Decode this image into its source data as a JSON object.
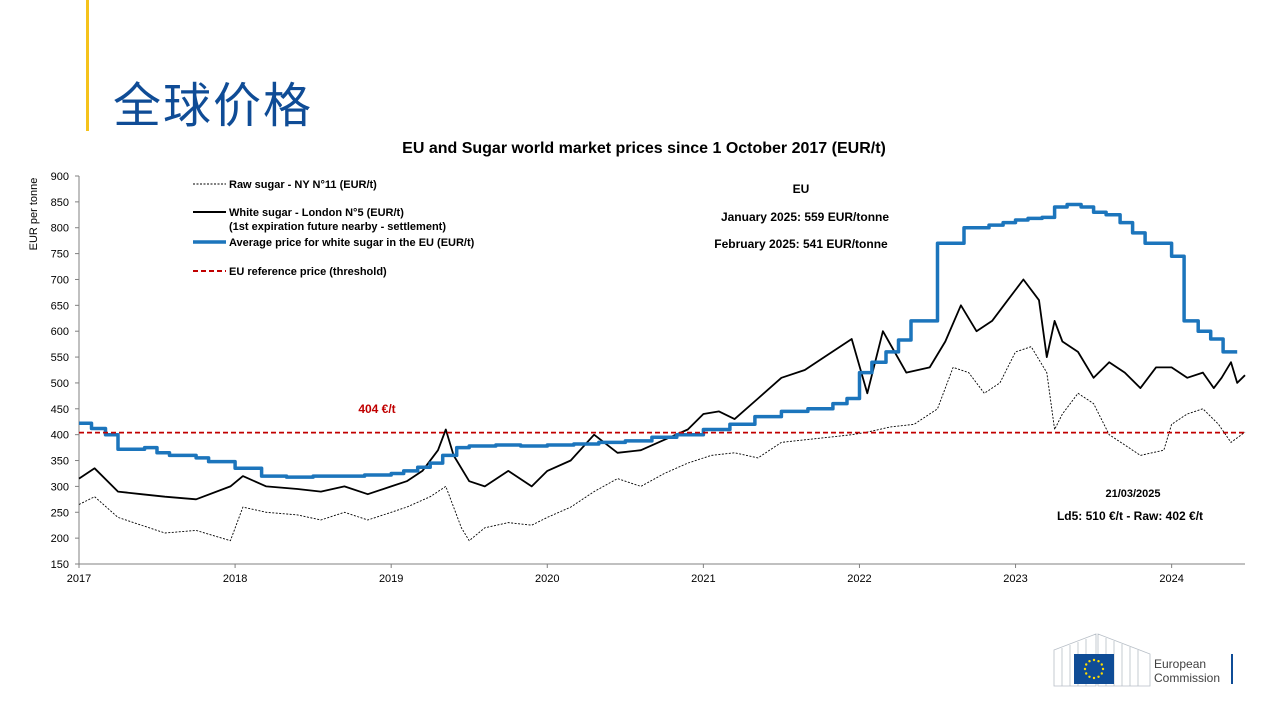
{
  "slide": {
    "title": "全球价格"
  },
  "chart_data": {
    "type": "line",
    "title": "EU and Sugar world market prices since 1 October 2017 (EUR/t)",
    "ylabel": "EUR per tonne",
    "xlabel": "",
    "ylim": [
      150,
      900
    ],
    "xlim": [
      2017.0,
      2024.47
    ],
    "y_ticks": [
      150,
      200,
      250,
      300,
      350,
      400,
      450,
      500,
      550,
      600,
      650,
      700,
      750,
      800,
      850,
      900
    ],
    "x_ticks": [
      "2017",
      "2018",
      "2019",
      "2020",
      "2021",
      "2022",
      "2023",
      "2024"
    ],
    "legend_position": "top-left",
    "series": [
      {
        "name": "Raw sugar - NY N°11 (EUR/t)",
        "style": "dotted",
        "color": "#000000",
        "x": [
          2017.0,
          2017.1,
          2017.25,
          2017.4,
          2017.55,
          2017.75,
          2017.97,
          2018.05,
          2018.2,
          2018.4,
          2018.55,
          2018.7,
          2018.85,
          2019.0,
          2019.1,
          2019.25,
          2019.35,
          2019.45,
          2019.5,
          2019.6,
          2019.75,
          2019.9,
          2020.0,
          2020.15,
          2020.3,
          2020.45,
          2020.6,
          2020.75,
          2020.9,
          2021.05,
          2021.2,
          2021.35,
          2021.5,
          2021.65,
          2021.8,
          2021.95,
          2022.05,
          2022.2,
          2022.35,
          2022.5,
          2022.6,
          2022.7,
          2022.8,
          2022.9,
          2023.0,
          2023.1,
          2023.2,
          2023.25,
          2023.3,
          2023.4,
          2023.5,
          2023.6,
          2023.7,
          2023.8,
          2023.95,
          2024.0,
          2024.1,
          2024.2,
          2024.3,
          2024.38,
          2024.47
        ],
        "y": [
          265,
          280,
          240,
          225,
          210,
          215,
          195,
          260,
          250,
          245,
          235,
          250,
          235,
          250,
          260,
          280,
          300,
          220,
          195,
          220,
          230,
          225,
          240,
          260,
          290,
          315,
          300,
          325,
          345,
          360,
          365,
          355,
          385,
          390,
          395,
          400,
          405,
          415,
          420,
          450,
          530,
          520,
          480,
          500,
          560,
          570,
          520,
          410,
          440,
          480,
          460,
          400,
          380,
          360,
          370,
          420,
          440,
          450,
          420,
          385,
          405
        ]
      },
      {
        "name": "White sugar - London N°5 (EUR/t)",
        "subname": "(1st expiration future nearby - settlement)",
        "style": "solid",
        "color": "#000000",
        "x": [
          2017.0,
          2017.1,
          2017.25,
          2017.4,
          2017.55,
          2017.75,
          2017.97,
          2018.05,
          2018.2,
          2018.4,
          2018.55,
          2018.7,
          2018.85,
          2019.0,
          2019.1,
          2019.2,
          2019.3,
          2019.35,
          2019.4,
          2019.5,
          2019.6,
          2019.75,
          2019.9,
          2020.0,
          2020.15,
          2020.3,
          2020.45,
          2020.6,
          2020.75,
          2020.9,
          2021.0,
          2021.1,
          2021.2,
          2021.35,
          2021.5,
          2021.65,
          2021.8,
          2021.95,
          2022.05,
          2022.15,
          2022.3,
          2022.45,
          2022.55,
          2022.65,
          2022.75,
          2022.85,
          2022.95,
          2023.05,
          2023.15,
          2023.2,
          2023.25,
          2023.3,
          2023.4,
          2023.5,
          2023.6,
          2023.7,
          2023.8,
          2023.9,
          2024.0,
          2024.1,
          2024.2,
          2024.27,
          2024.32,
          2024.38,
          2024.42,
          2024.47
        ],
        "y": [
          315,
          335,
          290,
          285,
          280,
          275,
          300,
          320,
          300,
          295,
          290,
          300,
          285,
          300,
          310,
          330,
          370,
          410,
          360,
          310,
          300,
          330,
          300,
          330,
          350,
          400,
          365,
          370,
          390,
          410,
          440,
          445,
          430,
          470,
          510,
          525,
          555,
          585,
          480,
          600,
          520,
          530,
          580,
          650,
          600,
          620,
          660,
          700,
          660,
          550,
          620,
          580,
          560,
          510,
          540,
          520,
          490,
          530,
          530,
          510,
          520,
          490,
          510,
          540,
          500,
          515
        ]
      },
      {
        "name": "Average price for white sugar in the EU (EUR/t)",
        "style": "solid-thick",
        "color": "#1c75bc",
        "x": [
          2017.0,
          2017.08,
          2017.17,
          2017.25,
          2017.42,
          2017.5,
          2017.58,
          2017.75,
          2017.83,
          2017.92,
          2018.0,
          2018.17,
          2018.33,
          2018.5,
          2018.67,
          2018.83,
          2019.0,
          2019.08,
          2019.17,
          2019.25,
          2019.33,
          2019.42,
          2019.5,
          2019.67,
          2019.83,
          2020.0,
          2020.17,
          2020.33,
          2020.5,
          2020.67,
          2020.83,
          2021.0,
          2021.17,
          2021.33,
          2021.5,
          2021.67,
          2021.83,
          2021.92,
          2022.0,
          2022.08,
          2022.17,
          2022.25,
          2022.33,
          2022.5,
          2022.67,
          2022.83,
          2022.92,
          2023.0,
          2023.08,
          2023.17,
          2023.25,
          2023.33,
          2023.42,
          2023.5,
          2023.58,
          2023.67,
          2023.75,
          2023.83,
          2024.0,
          2024.08,
          2024.17,
          2024.25,
          2024.33
        ],
        "y": [
          422,
          412,
          400,
          372,
          375,
          365,
          360,
          355,
          348,
          348,
          335,
          320,
          318,
          320,
          320,
          322,
          325,
          330,
          337,
          345,
          360,
          375,
          378,
          380,
          378,
          380,
          382,
          385,
          388,
          395,
          400,
          410,
          420,
          435,
          445,
          450,
          460,
          470,
          520,
          540,
          560,
          583,
          620,
          770,
          800,
          805,
          810,
          815,
          818,
          820,
          840,
          845,
          840,
          830,
          825,
          810,
          790,
          770,
          745,
          620,
          600,
          585,
          560
        ]
      },
      {
        "name": "EU reference price  (threshold)",
        "style": "dashed",
        "color": "#c00000",
        "x": [
          2017.0,
          2024.47
        ],
        "y": [
          404,
          404
        ]
      }
    ],
    "annotations": {
      "threshold_label": "404 €/t",
      "eu_heading": "EU",
      "eu_jan": "January 2025: 559 EUR/tonne",
      "eu_feb": "February 2025: 541 EUR/tonne",
      "date_label": "21/03/2025",
      "latest_values": "Ld5: 510 €/t - Raw: 402 €/t"
    }
  },
  "footer": {
    "logo_text_line1": "European",
    "logo_text_line2": "Commission",
    "flag_color": "#0f4c96",
    "star_color": "#ffdd00"
  }
}
